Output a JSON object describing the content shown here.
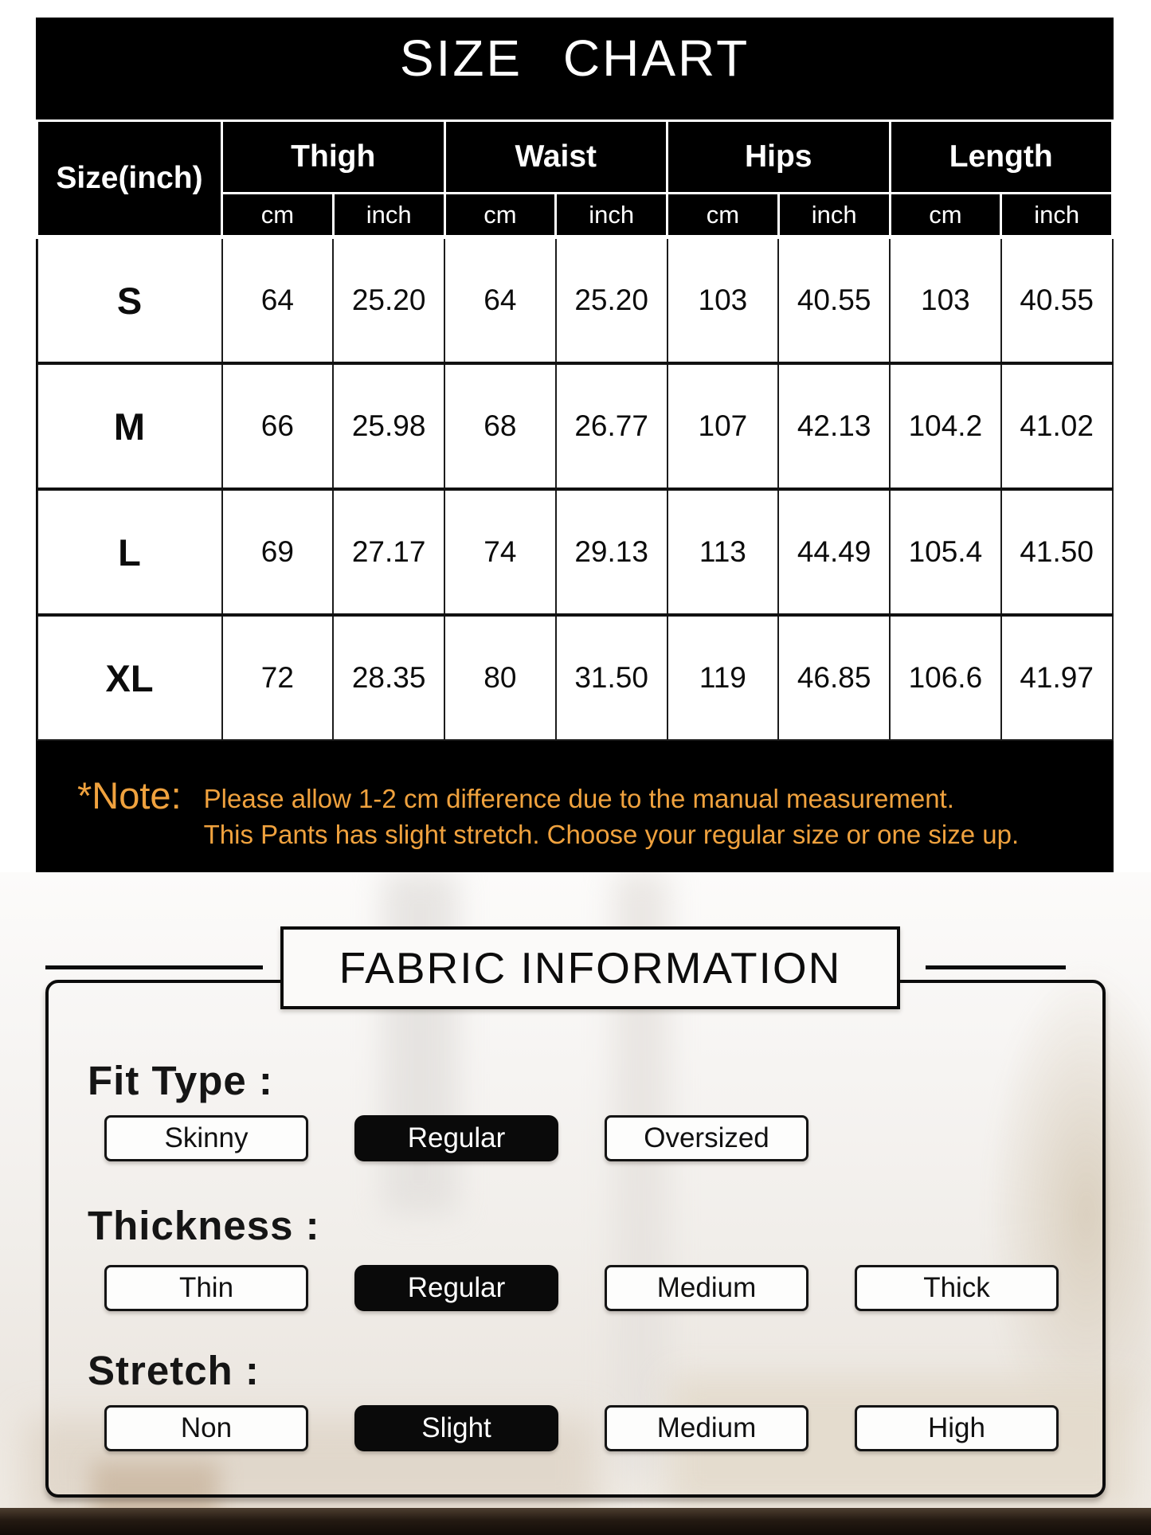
{
  "size_chart": {
    "title": "SIZE CHART",
    "size_column_header": "Size(inch)",
    "measure_groups": [
      "Thigh",
      "Waist",
      "Hips",
      "Length"
    ],
    "units": {
      "cm": "cm",
      "inch": "inch"
    },
    "rows": [
      {
        "size": "S",
        "thigh_cm": "64",
        "thigh_inch": "25.20",
        "waist_cm": "64",
        "waist_inch": "25.20",
        "hips_cm": "103",
        "hips_inch": "40.55",
        "length_cm": "103",
        "length_inch": "40.55"
      },
      {
        "size": "M",
        "thigh_cm": "66",
        "thigh_inch": "25.98",
        "waist_cm": "68",
        "waist_inch": "26.77",
        "hips_cm": "107",
        "hips_inch": "42.13",
        "length_cm": "104.2",
        "length_inch": "41.02"
      },
      {
        "size": "L",
        "thigh_cm": "69",
        "thigh_inch": "27.17",
        "waist_cm": "74",
        "waist_inch": "29.13",
        "hips_cm": "113",
        "hips_inch": "44.49",
        "length_cm": "105.4",
        "length_inch": "41.50"
      },
      {
        "size": "XL",
        "thigh_cm": "72",
        "thigh_inch": "28.35",
        "waist_cm": "80",
        "waist_inch": "31.50",
        "hips_cm": "119",
        "hips_inch": "46.85",
        "length_cm": "106.6",
        "length_inch": "41.97"
      }
    ],
    "note": {
      "label": "*Note:",
      "line1": "Please allow 1-2 cm difference due to the manual measurement.",
      "line2": "This Pants has slight stretch. Choose your regular size or one size up."
    }
  },
  "fabric_information": {
    "title": "FABRIC INFORMATION",
    "groups": [
      {
        "label": "Fit Type :",
        "options": [
          {
            "label": "Skinny",
            "selected": false
          },
          {
            "label": "Regular",
            "selected": true
          },
          {
            "label": "Oversized",
            "selected": false
          }
        ]
      },
      {
        "label": "Thickness :",
        "options": [
          {
            "label": "Thin",
            "selected": false
          },
          {
            "label": "Regular",
            "selected": true
          },
          {
            "label": "Medium",
            "selected": false
          },
          {
            "label": "Thick",
            "selected": false
          }
        ]
      },
      {
        "label": "Stretch :",
        "options": [
          {
            "label": "Non",
            "selected": false
          },
          {
            "label": "Slight",
            "selected": true
          },
          {
            "label": "Medium",
            "selected": false
          },
          {
            "label": "High",
            "selected": false
          }
        ]
      }
    ]
  },
  "colors": {
    "note_orange": "#F0A23E",
    "panel_background": "#000000",
    "selected_option_background": "#0A0A0A"
  }
}
